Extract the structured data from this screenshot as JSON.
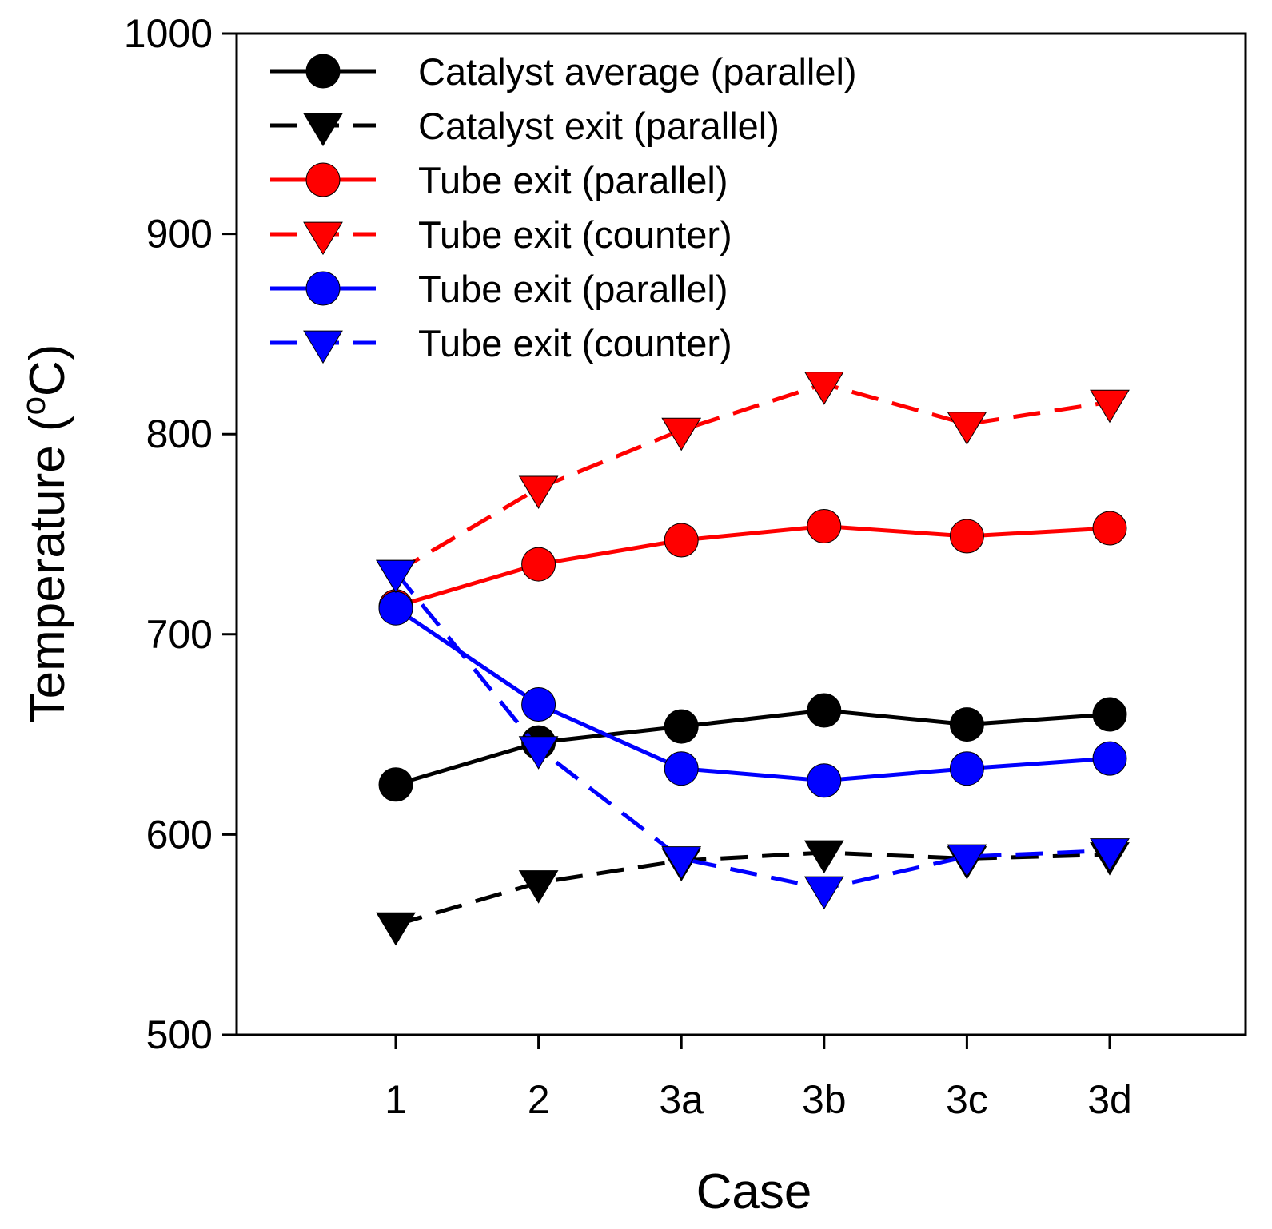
{
  "chart_data": {
    "type": "line",
    "title": "",
    "xlabel": "Case",
    "ylabel": {
      "main": "Temperature (",
      "superscript": "o",
      "unit": "C)"
    },
    "categories": [
      "1",
      "2",
      "3a",
      "3b",
      "3c",
      "3d"
    ],
    "ylim": [
      500,
      1000
    ],
    "yticks": [
      500,
      600,
      700,
      800,
      900,
      1000
    ],
    "grid": false,
    "legend_position": "top-left",
    "series": [
      {
        "name": "Catalyst average (parallel)",
        "color": "#000000",
        "dash": "solid",
        "marker": "circle",
        "values": [
          625,
          646,
          654,
          662,
          655,
          660
        ]
      },
      {
        "name": "Catalyst exit (parallel)",
        "color": "#000000",
        "dash": "dashed",
        "marker": "triangle-down",
        "values": [
          555,
          576,
          587,
          591,
          588,
          590
        ]
      },
      {
        "name": "Tube exit (parallel)",
        "color": "#ff0000",
        "dash": "solid",
        "marker": "circle",
        "values": [
          714,
          735,
          747,
          754,
          749,
          753
        ]
      },
      {
        "name": "Tube exit (counter)",
        "color": "#ff0000",
        "dash": "dashed",
        "marker": "triangle-down",
        "values": [
          731,
          773,
          802,
          825,
          805,
          816
        ]
      },
      {
        "name": "Tube exit (parallel)",
        "color": "#0000ff",
        "dash": "solid",
        "marker": "circle",
        "values": [
          713,
          665,
          633,
          627,
          633,
          638
        ]
      },
      {
        "name": "Tube exit (counter)",
        "color": "#0000ff",
        "dash": "dashed",
        "marker": "triangle-down",
        "values": [
          731,
          643,
          588,
          573,
          589,
          592
        ]
      }
    ]
  }
}
